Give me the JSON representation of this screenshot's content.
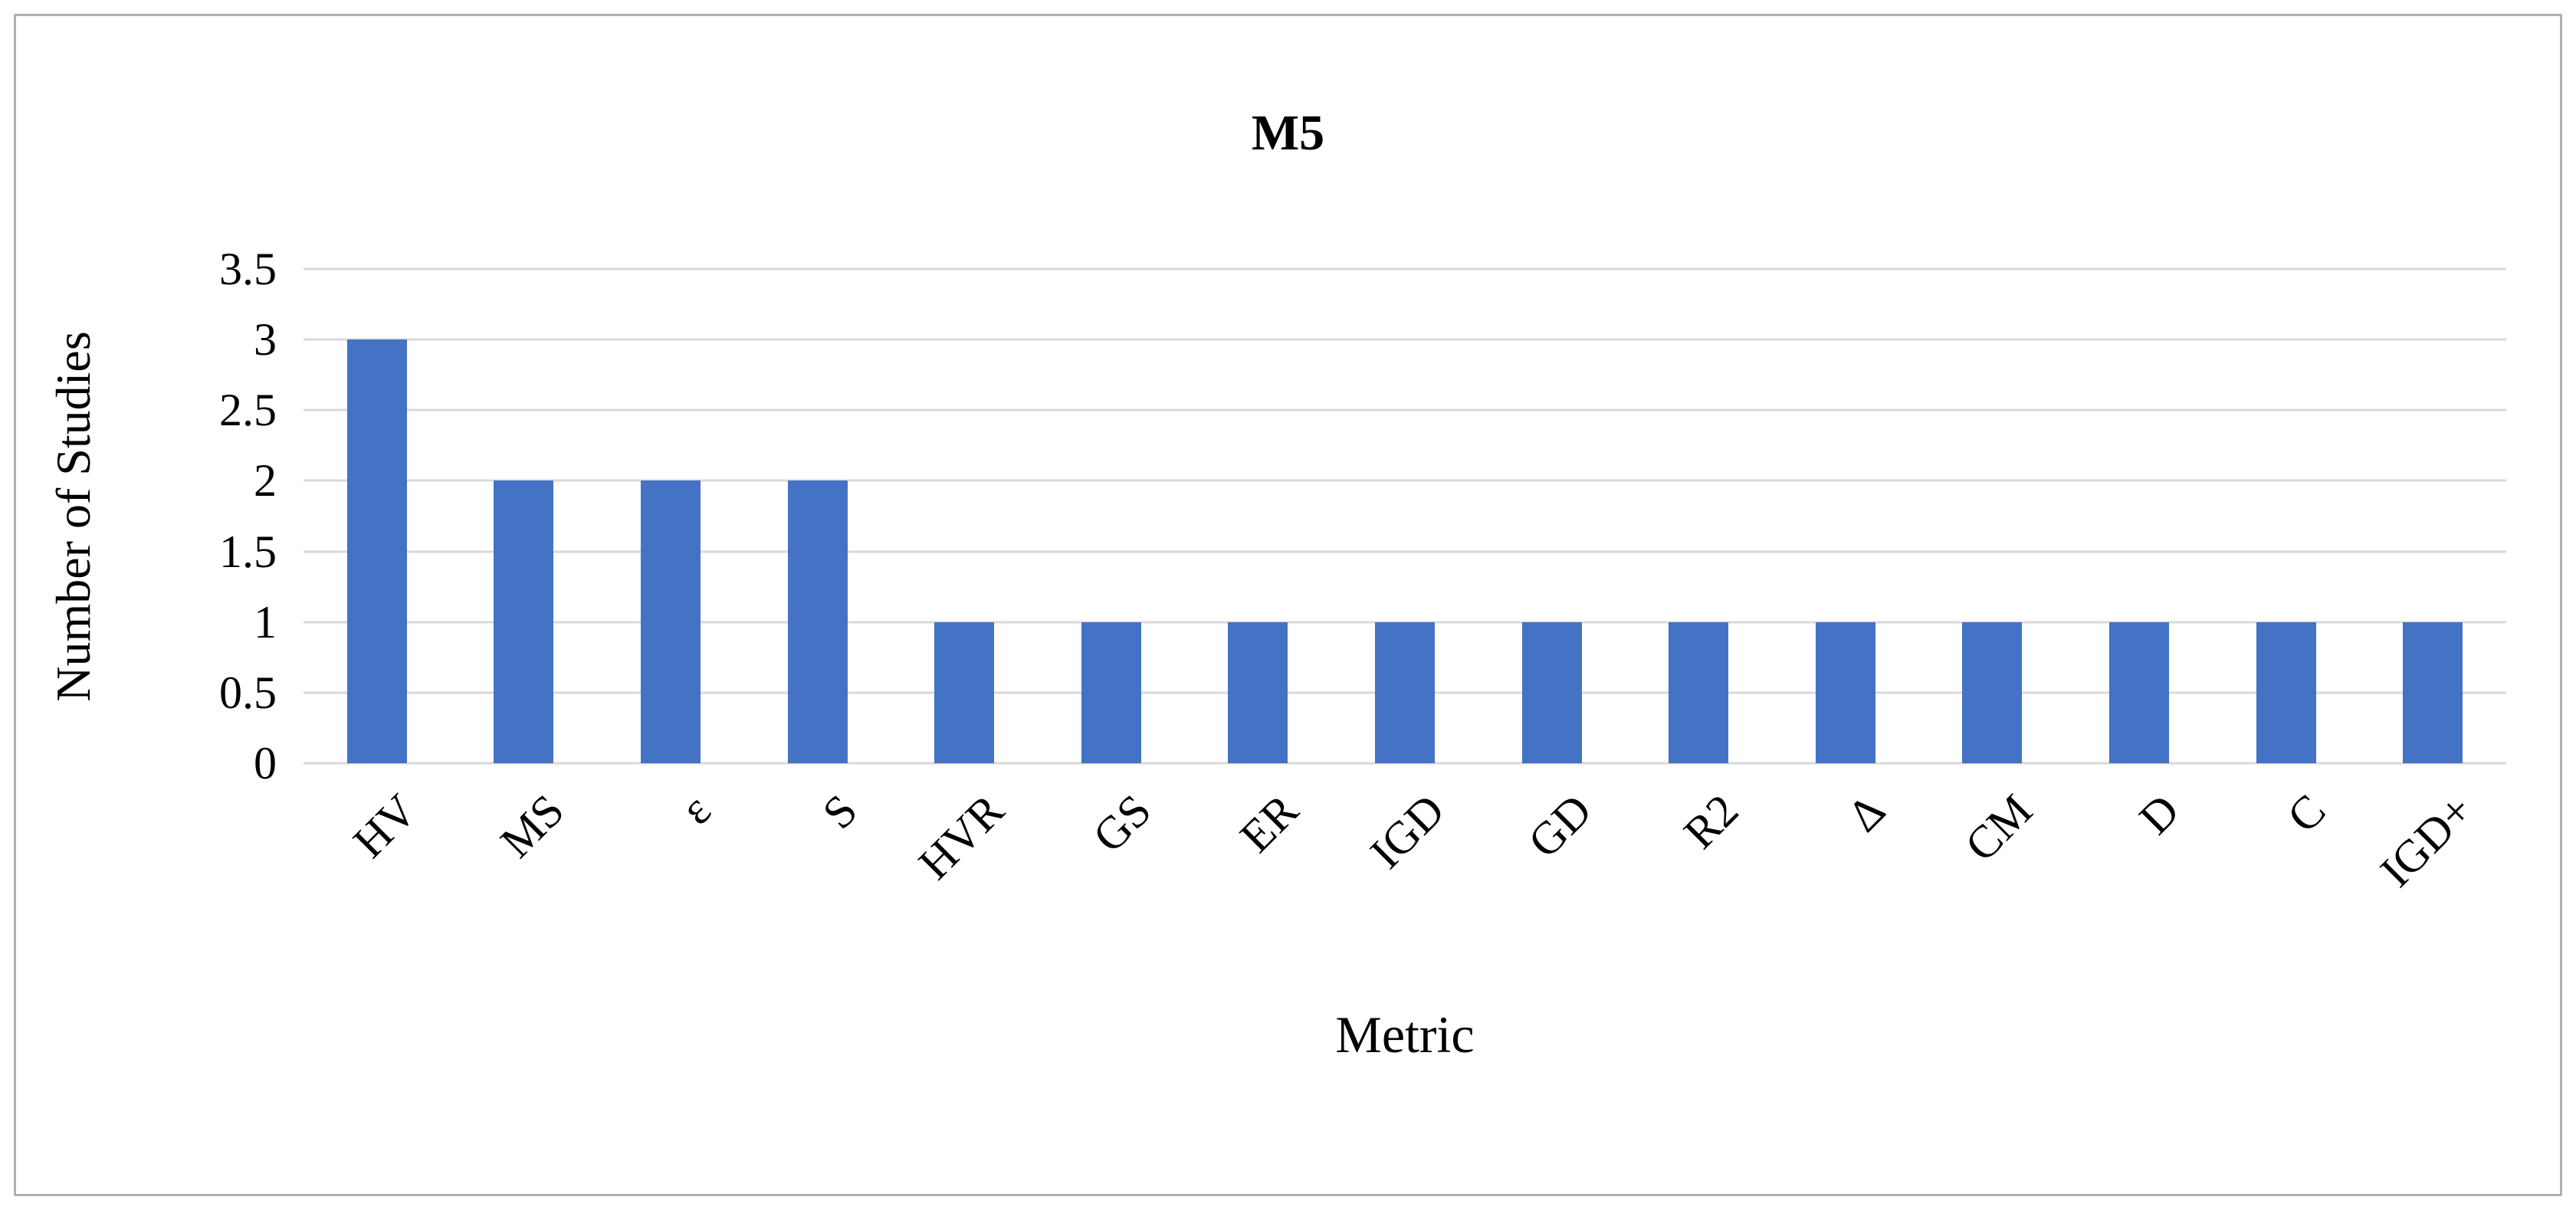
{
  "chart_data": {
    "type": "bar",
    "title": "M5",
    "categories": [
      "HV",
      "MS",
      "ε",
      "S",
      "HVR",
      "GS",
      "ER",
      "IGD",
      "GD",
      "R2",
      "Δ",
      "CM",
      "D",
      "C",
      "IGD+"
    ],
    "values": [
      3,
      2,
      2,
      2,
      1,
      1,
      1,
      1,
      1,
      1,
      1,
      1,
      1,
      1,
      1
    ],
    "xlabel": "Metric",
    "ylabel": "Number of Studies",
    "ylim": [
      0,
      3.5
    ],
    "yticks": [
      0,
      0.5,
      1,
      1.5,
      2,
      2.5,
      3,
      3.5
    ],
    "grid": true,
    "legend_position": "none",
    "bar_color": "#4472c4",
    "gridline_color": "#d9d9d9",
    "frame_border_color": "#b0b0b0"
  }
}
